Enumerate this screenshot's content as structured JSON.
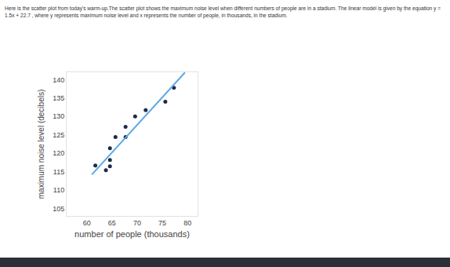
{
  "chart_data": {
    "type": "scatter",
    "title": "Here is the scatter plot from today's warm-up.The scatter plot shows the maximum noise level when different numbers of people are in a stadium. The linear model is given by the equation y = 1.5x + 22.7 , where y represents maximum noise level and x represents the number of people, in thousands, in the stadium.",
    "x_label": "number of people (thousands)",
    "y_label": "maximum noise level (decibels)",
    "series": [
      {
        "type": "scatter",
        "color": "#1c2b4a",
        "marker": "circle",
        "x": [
          77.3,
          75.6,
          71.7,
          69.6,
          67.7,
          65.7,
          67.7,
          64.6,
          64.6,
          64.6,
          63.8,
          61.7
        ],
        "values": [
          137.8,
          134.0,
          131.7,
          130.0,
          127.2,
          124.4,
          124.4,
          121.4,
          118.2,
          116.5,
          115.4,
          116.7
        ]
      },
      {
        "type": "line",
        "color": "#5aa9e6",
        "line_style": "solid",
        "x": [
          61.0,
          79.5
        ],
        "values": [
          114.2,
          141.95
        ]
      }
    ],
    "xlim": [
      56,
      82
    ],
    "xticks": [
      60,
      65,
      70,
      75,
      80
    ],
    "ylim": [
      103,
      142
    ],
    "yticks": [
      105,
      110,
      115,
      120,
      125,
      130,
      135,
      140
    ],
    "grid": false
  }
}
